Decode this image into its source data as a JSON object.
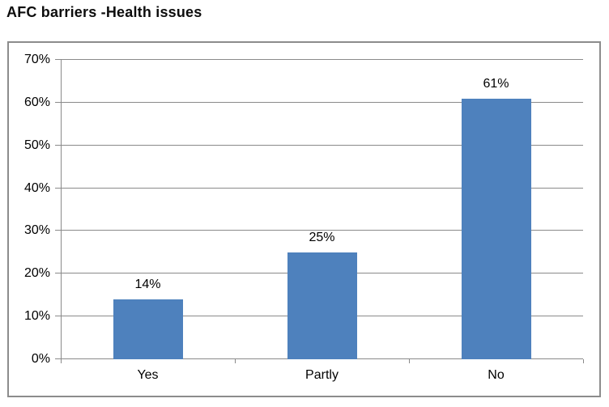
{
  "chart_data": {
    "type": "bar",
    "title": "AFC barriers -Health issues",
    "categories": [
      "Yes",
      "Partly",
      "No"
    ],
    "values": [
      14,
      25,
      61
    ],
    "data_labels": [
      "14%",
      "25%",
      "61%"
    ],
    "y_tick_labels": [
      "0%",
      "10%",
      "20%",
      "30%",
      "40%",
      "50%",
      "60%",
      "70%"
    ],
    "y_tick_values": [
      0,
      10,
      20,
      30,
      40,
      50,
      60,
      70
    ],
    "ylim": [
      0,
      70
    ],
    "xlabel": "",
    "ylabel": "",
    "grid": true,
    "legend_position": "none",
    "colors": {
      "bar_fill": "#4e81bd",
      "gridline": "#8a8a8a",
      "axis_line": "#8a8a8a",
      "frame_border": "#8c8c8c",
      "text": "#000000",
      "title_text": "#0d0d0d",
      "background": "#ffffff"
    }
  }
}
